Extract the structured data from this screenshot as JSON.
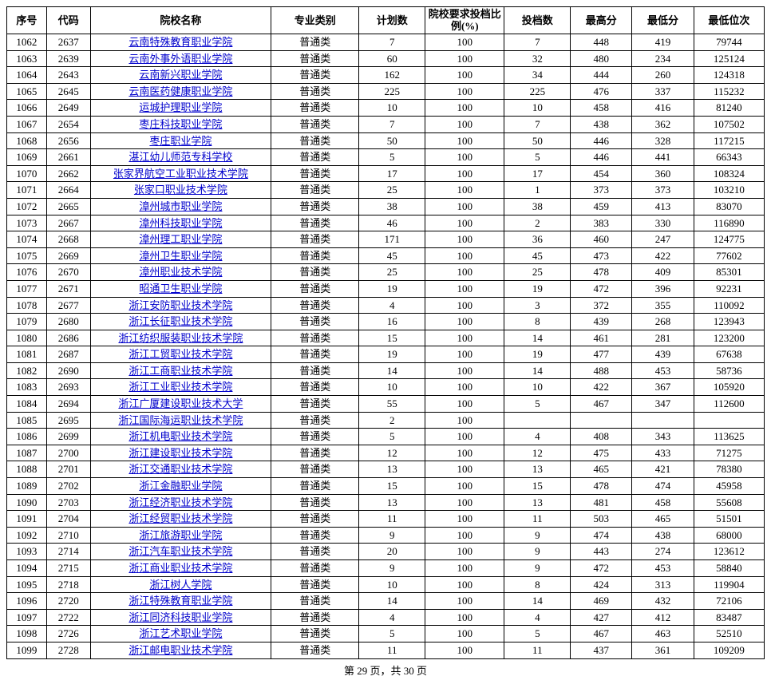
{
  "headers": {
    "seq": "序号",
    "code": "代码",
    "name": "院校名称",
    "category": "专业类别",
    "plan": "计划数",
    "ratio": "院校要求投档比例(%)",
    "tou": "投档数",
    "max": "最高分",
    "min": "最低分",
    "rank": "最低位次"
  },
  "footer": "第 29 页，共 30 页",
  "category_default": "普通类",
  "ratio_default": "100",
  "link_color": "#0000cc",
  "rows": [
    {
      "seq": "1062",
      "code": "2637",
      "name": "云南特殊教育职业学院",
      "plan": "7",
      "tou": "7",
      "max": "448",
      "min": "419",
      "rank": "79744"
    },
    {
      "seq": "1063",
      "code": "2639",
      "name": "云南外事外语职业学院",
      "plan": "60",
      "tou": "32",
      "max": "480",
      "min": "234",
      "rank": "125124"
    },
    {
      "seq": "1064",
      "code": "2643",
      "name": "云南新兴职业学院",
      "plan": "162",
      "tou": "34",
      "max": "444",
      "min": "260",
      "rank": "124318"
    },
    {
      "seq": "1065",
      "code": "2645",
      "name": "云南医药健康职业学院",
      "plan": "225",
      "tou": "225",
      "max": "476",
      "min": "337",
      "rank": "115232"
    },
    {
      "seq": "1066",
      "code": "2649",
      "name": "运城护理职业学院",
      "plan": "10",
      "tou": "10",
      "max": "458",
      "min": "416",
      "rank": "81240"
    },
    {
      "seq": "1067",
      "code": "2654",
      "name": "枣庄科技职业学院",
      "plan": "7",
      "tou": "7",
      "max": "438",
      "min": "362",
      "rank": "107502"
    },
    {
      "seq": "1068",
      "code": "2656",
      "name": "枣庄职业学院",
      "plan": "50",
      "tou": "50",
      "max": "446",
      "min": "328",
      "rank": "117215"
    },
    {
      "seq": "1069",
      "code": "2661",
      "name": "湛江幼儿师范专科学校",
      "plan": "5",
      "tou": "5",
      "max": "446",
      "min": "441",
      "rank": "66343"
    },
    {
      "seq": "1070",
      "code": "2662",
      "name": "张家界航空工业职业技术学院",
      "plan": "17",
      "tou": "17",
      "max": "454",
      "min": "360",
      "rank": "108324"
    },
    {
      "seq": "1071",
      "code": "2664",
      "name": "张家口职业技术学院",
      "plan": "25",
      "tou": "1",
      "max": "373",
      "min": "373",
      "rank": "103210"
    },
    {
      "seq": "1072",
      "code": "2665",
      "name": "漳州城市职业学院",
      "plan": "38",
      "tou": "38",
      "max": "459",
      "min": "413",
      "rank": "83070"
    },
    {
      "seq": "1073",
      "code": "2667",
      "name": "漳州科技职业学院",
      "plan": "46",
      "tou": "2",
      "max": "383",
      "min": "330",
      "rank": "116890"
    },
    {
      "seq": "1074",
      "code": "2668",
      "name": "漳州理工职业学院",
      "plan": "171",
      "tou": "36",
      "max": "460",
      "min": "247",
      "rank": "124775"
    },
    {
      "seq": "1075",
      "code": "2669",
      "name": "漳州卫生职业学院",
      "plan": "45",
      "tou": "45",
      "max": "473",
      "min": "422",
      "rank": "77602"
    },
    {
      "seq": "1076",
      "code": "2670",
      "name": "漳州职业技术学院",
      "plan": "25",
      "tou": "25",
      "max": "478",
      "min": "409",
      "rank": "85301"
    },
    {
      "seq": "1077",
      "code": "2671",
      "name": "昭通卫生职业学院",
      "plan": "19",
      "tou": "19",
      "max": "472",
      "min": "396",
      "rank": "92231"
    },
    {
      "seq": "1078",
      "code": "2677",
      "name": "浙江安防职业技术学院",
      "plan": "4",
      "tou": "3",
      "max": "372",
      "min": "355",
      "rank": "110092"
    },
    {
      "seq": "1079",
      "code": "2680",
      "name": "浙江长征职业技术学院",
      "plan": "16",
      "tou": "8",
      "max": "439",
      "min": "268",
      "rank": "123943"
    },
    {
      "seq": "1080",
      "code": "2686",
      "name": "浙江纺织服装职业技术学院",
      "plan": "15",
      "tou": "14",
      "max": "461",
      "min": "281",
      "rank": "123200"
    },
    {
      "seq": "1081",
      "code": "2687",
      "name": "浙江工贸职业技术学院",
      "plan": "19",
      "tou": "19",
      "max": "477",
      "min": "439",
      "rank": "67638"
    },
    {
      "seq": "1082",
      "code": "2690",
      "name": "浙江工商职业技术学院",
      "plan": "14",
      "tou": "14",
      "max": "488",
      "min": "453",
      "rank": "58736"
    },
    {
      "seq": "1083",
      "code": "2693",
      "name": "浙江工业职业技术学院",
      "plan": "10",
      "tou": "10",
      "max": "422",
      "min": "367",
      "rank": "105920"
    },
    {
      "seq": "1084",
      "code": "2694",
      "name": "浙江广厦建设职业技术大学",
      "plan": "55",
      "tou": "5",
      "max": "467",
      "min": "347",
      "rank": "112600"
    },
    {
      "seq": "1085",
      "code": "2695",
      "name": "浙江国际海运职业技术学院",
      "plan": "2",
      "tou": "",
      "max": "",
      "min": "",
      "rank": ""
    },
    {
      "seq": "1086",
      "code": "2699",
      "name": "浙江机电职业技术学院",
      "plan": "5",
      "tou": "4",
      "max": "408",
      "min": "343",
      "rank": "113625"
    },
    {
      "seq": "1087",
      "code": "2700",
      "name": "浙江建设职业技术学院",
      "plan": "12",
      "tou": "12",
      "max": "475",
      "min": "433",
      "rank": "71275"
    },
    {
      "seq": "1088",
      "code": "2701",
      "name": "浙江交通职业技术学院",
      "plan": "13",
      "tou": "13",
      "max": "465",
      "min": "421",
      "rank": "78380"
    },
    {
      "seq": "1089",
      "code": "2702",
      "name": "浙江金融职业学院",
      "plan": "15",
      "tou": "15",
      "max": "478",
      "min": "474",
      "rank": "45958"
    },
    {
      "seq": "1090",
      "code": "2703",
      "name": "浙江经济职业技术学院",
      "plan": "13",
      "tou": "13",
      "max": "481",
      "min": "458",
      "rank": "55608"
    },
    {
      "seq": "1091",
      "code": "2704",
      "name": "浙江经贸职业技术学院",
      "plan": "11",
      "tou": "11",
      "max": "503",
      "min": "465",
      "rank": "51501"
    },
    {
      "seq": "1092",
      "code": "2710",
      "name": "浙江旅游职业学院",
      "plan": "9",
      "tou": "9",
      "max": "474",
      "min": "438",
      "rank": "68000"
    },
    {
      "seq": "1093",
      "code": "2714",
      "name": "浙江汽车职业技术学院",
      "plan": "20",
      "tou": "9",
      "max": "443",
      "min": "274",
      "rank": "123612"
    },
    {
      "seq": "1094",
      "code": "2715",
      "name": "浙江商业职业技术学院",
      "plan": "9",
      "tou": "9",
      "max": "472",
      "min": "453",
      "rank": "58840"
    },
    {
      "seq": "1095",
      "code": "2718",
      "name": "浙江树人学院",
      "plan": "10",
      "tou": "8",
      "max": "424",
      "min": "313",
      "rank": "119904"
    },
    {
      "seq": "1096",
      "code": "2720",
      "name": "浙江特殊教育职业学院",
      "plan": "14",
      "tou": "14",
      "max": "469",
      "min": "432",
      "rank": "72106"
    },
    {
      "seq": "1097",
      "code": "2722",
      "name": "浙江同济科技职业学院",
      "plan": "4",
      "tou": "4",
      "max": "427",
      "min": "412",
      "rank": "83487"
    },
    {
      "seq": "1098",
      "code": "2726",
      "name": "浙江艺术职业学院",
      "plan": "5",
      "tou": "5",
      "max": "467",
      "min": "463",
      "rank": "52510"
    },
    {
      "seq": "1099",
      "code": "2728",
      "name": "浙江邮电职业技术学院",
      "plan": "11",
      "tou": "11",
      "max": "437",
      "min": "361",
      "rank": "109209"
    }
  ]
}
